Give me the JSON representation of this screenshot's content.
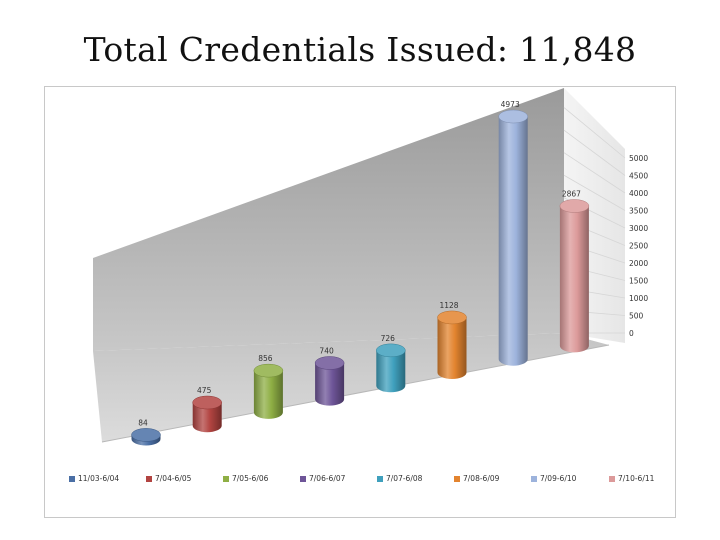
{
  "slide": {
    "title": "Total Credentials Issued: 11,848"
  },
  "chart_data": {
    "type": "bar",
    "style": "3d-cylinder",
    "title": "",
    "xlabel": "",
    "ylabel": "",
    "categories": [
      "11/03-6/04",
      "7/04-6/05",
      "7/05-6/06",
      "7/06-6/07",
      "7/07-6/08",
      "7/08-6/09",
      "7/09-6/10",
      "7/10-6/11"
    ],
    "series": [
      {
        "values": [
          84,
          475,
          856,
          740,
          726,
          1128,
          4973,
          2867
        ],
        "colors": [
          "#4a6fa5",
          "#b24441",
          "#8faf45",
          "#6e5598",
          "#3fa0bd",
          "#e3842f",
          "#9db3dc",
          "#dc9a9a"
        ]
      }
    ],
    "data_labels": [
      "84",
      "475",
      "856",
      "740",
      "726",
      "1128",
      "4973",
      "2867"
    ],
    "ylim": [
      0,
      5000
    ],
    "y_ticks": [
      "0",
      "500",
      "1000",
      "1500",
      "2000",
      "2500",
      "3000",
      "3500",
      "4000",
      "4500",
      "5000"
    ],
    "y_axis_side": "right",
    "grid": true,
    "legend_position": "bottom"
  }
}
